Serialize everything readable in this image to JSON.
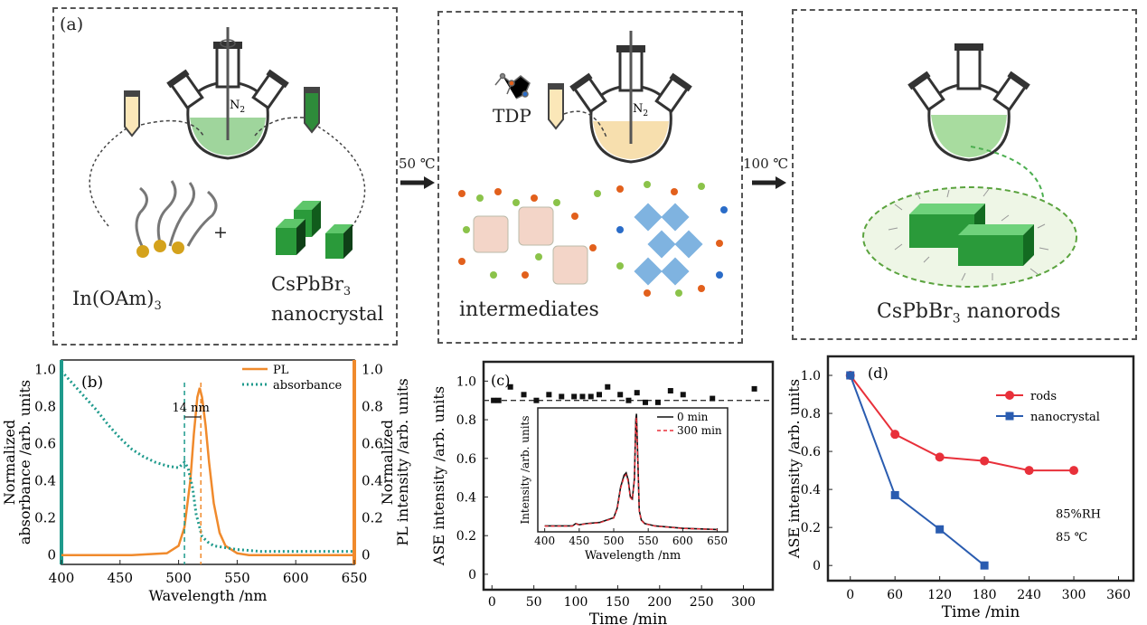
{
  "panel_a": {
    "label": "(a)",
    "reagent_1": "In(OAm)",
    "reagent_1_sub": "3",
    "plus": "+",
    "reagent_2_line1": "CsPbBr",
    "reagent_2_sub": "3",
    "reagent_2_line2": "nanocrystal",
    "gas": "N",
    "gas_sub": "2"
  },
  "step_1": {
    "temp": "50 ℃"
  },
  "panel_mid": {
    "reagent": "TDP",
    "gas": "N",
    "gas_sub": "2",
    "label": "intermediates"
  },
  "step_2": {
    "temp": "100 ℃"
  },
  "panel_right": {
    "label_1": "CsPbBr",
    "label_sub": "3",
    "label_2": " nanorods"
  },
  "colors": {
    "pl": "#f08a2c",
    "absorbance": "#1e9a8c",
    "rods": "#e8303a",
    "nanocrystal": "#2a5cb0",
    "nanorod_green": "#3bb54a"
  },
  "chart_data": [
    {
      "id": "b",
      "panel_label": "(b)",
      "type": "line",
      "xlabel": "Wavelength /nm",
      "ylabel_left": "Normalized\nabsorbance /arb. units",
      "ylabel_right": "Normalized\nPL intensity /arb. units",
      "xlim": [
        400,
        650
      ],
      "ylim": [
        -0.05,
        1.05
      ],
      "x_ticks": [
        "400",
        "450",
        "500",
        "550",
        "600",
        "650"
      ],
      "y_ticks": [
        "0",
        "0.2",
        "0.4",
        "0.6",
        "0.8",
        "1.0"
      ],
      "annotation": "14 nm",
      "series": [
        {
          "name": "PL",
          "style": "solid",
          "x": [
            400,
            460,
            490,
            500,
            505,
            510,
            513,
            516,
            518,
            520,
            523,
            526,
            530,
            535,
            540,
            550,
            560,
            600,
            650
          ],
          "y": [
            0,
            0,
            0.01,
            0.05,
            0.15,
            0.4,
            0.65,
            0.85,
            0.9,
            0.85,
            0.7,
            0.5,
            0.28,
            0.12,
            0.05,
            0.01,
            0,
            0,
            0
          ]
        },
        {
          "name": "absorbance",
          "style": "dotted",
          "x": [
            400,
            410,
            420,
            430,
            440,
            450,
            460,
            470,
            480,
            490,
            500,
            505,
            508,
            512,
            515,
            520,
            525,
            530,
            540,
            550,
            570,
            600,
            650
          ],
          "y": [
            0.99,
            0.92,
            0.85,
            0.78,
            0.7,
            0.63,
            0.57,
            0.53,
            0.5,
            0.48,
            0.47,
            0.5,
            0.47,
            0.36,
            0.22,
            0.1,
            0.07,
            0.05,
            0.04,
            0.03,
            0.02,
            0.02,
            0.02
          ]
        }
      ],
      "dashed_lines_x": [
        505,
        519
      ]
    },
    {
      "id": "c",
      "panel_label": "(c)",
      "type": "scatter",
      "xlabel": "Time /min",
      "ylabel": "ASE intensity /arb. units",
      "xlim": [
        -10,
        335
      ],
      "ylim": [
        -0.08,
        1.1
      ],
      "x_ticks": [
        "0",
        "50",
        "100",
        "150",
        "200",
        "250",
        "300"
      ],
      "y_ticks": [
        "0",
        "0.2",
        "0.4",
        "0.6",
        "0.8",
        "1.0"
      ],
      "reference_line_y": 0.9,
      "points": {
        "x": [
          2,
          8,
          22,
          38,
          53,
          68,
          83,
          98,
          108,
          118,
          128,
          138,
          153,
          163,
          173,
          183,
          198,
          213,
          228,
          263,
          313
        ],
        "y": [
          0.9,
          0.9,
          0.97,
          0.93,
          0.9,
          0.93,
          0.92,
          0.92,
          0.92,
          0.92,
          0.93,
          0.97,
          0.93,
          0.9,
          0.94,
          0.89,
          0.89,
          0.95,
          0.93,
          0.91,
          0.96
        ]
      },
      "inset": {
        "xlabel": "Wavelength /nm",
        "ylabel": "Intensity /arb. units",
        "xlim": [
          390,
          665
        ],
        "x_ticks": [
          "400",
          "450",
          "500",
          "550",
          "600",
          "650"
        ],
        "series": [
          {
            "name": "0 min",
            "style": "solid"
          },
          {
            "name": "300 min",
            "style": "dashed"
          }
        ],
        "x": [
          400,
          440,
          445,
          450,
          460,
          480,
          500,
          505,
          510,
          515,
          518,
          521,
          524,
          527,
          530,
          532,
          533,
          535,
          537,
          540,
          545,
          560,
          600,
          650
        ],
        "y": [
          0.05,
          0.05,
          0.07,
          0.06,
          0.07,
          0.08,
          0.12,
          0.2,
          0.38,
          0.48,
          0.5,
          0.44,
          0.3,
          0.28,
          0.45,
          0.95,
          1.0,
          0.6,
          0.18,
          0.1,
          0.07,
          0.05,
          0.03,
          0.02
        ]
      }
    },
    {
      "id": "d",
      "panel_label": "(d)",
      "type": "line",
      "xlabel": "Time /min",
      "ylabel": "ASE intensity /arb. units",
      "xlim": [
        -30,
        380
      ],
      "ylim": [
        -0.08,
        1.1
      ],
      "x_ticks": [
        "0",
        "60",
        "120",
        "180",
        "240",
        "300",
        "360"
      ],
      "y_ticks": [
        "0",
        "0.2",
        "0.4",
        "0.6",
        "0.8",
        "1.0"
      ],
      "annotations": [
        "85%RH",
        "85 ℃"
      ],
      "series": [
        {
          "name": "rods",
          "marker": "circle",
          "x": [
            0,
            60,
            120,
            180,
            240,
            300
          ],
          "y": [
            1.0,
            0.69,
            0.57,
            0.55,
            0.5,
            0.5
          ]
        },
        {
          "name": "nanocrystal",
          "marker": "square",
          "x": [
            0,
            60,
            120,
            180
          ],
          "y": [
            1.0,
            0.37,
            0.19,
            0.0
          ]
        }
      ]
    }
  ]
}
